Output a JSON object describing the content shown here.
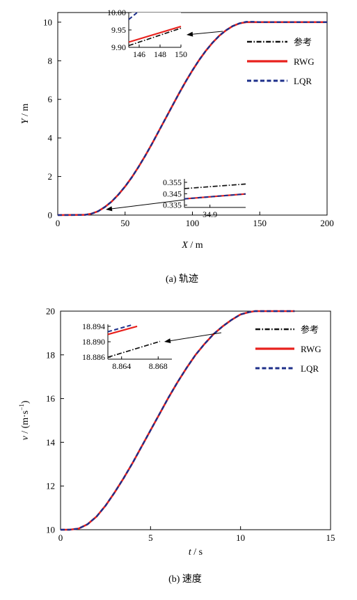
{
  "chart_data": [
    {
      "type": "line",
      "caption": "(a) 轨迹",
      "xlabel_var": "X",
      "xlabel_unit": " / m",
      "ylabel_var": "Y",
      "ylabel_unit": " / m",
      "xlim": [
        0,
        200
      ],
      "ylim": [
        0,
        10.5
      ],
      "xticks": [
        "0",
        "50",
        "100",
        "150",
        "200"
      ],
      "yticks": [
        "0",
        "2",
        "4",
        "6",
        "8",
        "10"
      ],
      "legend": [
        "参考",
        "RWG",
        "LQR"
      ],
      "legend_position": "top-right",
      "series": [
        {
          "name": "参考",
          "color": "#111111",
          "style": "dash-dot",
          "x": [
            0,
            20,
            25,
            30,
            35,
            40,
            45,
            50,
            55,
            60,
            65,
            70,
            75,
            80,
            85,
            90,
            95,
            100,
            105,
            110,
            115,
            120,
            125,
            130,
            135,
            140,
            145,
            150,
            160,
            170,
            180,
            190,
            200
          ],
          "y": [
            0,
            0.01,
            0.07,
            0.2,
            0.42,
            0.7,
            1.06,
            1.48,
            1.96,
            2.5,
            3.08,
            3.7,
            4.35,
            5.0,
            5.65,
            6.3,
            6.92,
            7.5,
            8.04,
            8.52,
            8.94,
            9.3,
            9.58,
            9.8,
            9.94,
            10.0,
            10.0,
            10.0,
            10.0,
            10.0,
            10.0,
            10.0,
            10.0
          ]
        },
        {
          "name": "RWG",
          "color": "#e8211d",
          "style": "solid",
          "x": [
            0,
            20,
            25,
            30,
            35,
            40,
            45,
            50,
            55,
            60,
            65,
            70,
            75,
            80,
            85,
            90,
            95,
            100,
            105,
            110,
            115,
            120,
            125,
            130,
            135,
            140,
            145,
            150,
            160,
            170,
            180,
            190,
            200
          ],
          "y": [
            0,
            0.01,
            0.07,
            0.2,
            0.42,
            0.7,
            1.06,
            1.48,
            1.96,
            2.5,
            3.08,
            3.7,
            4.35,
            5.0,
            5.65,
            6.3,
            6.92,
            7.5,
            8.04,
            8.52,
            8.94,
            9.3,
            9.58,
            9.8,
            9.94,
            10.0,
            10.0,
            10.0,
            10.0,
            10.0,
            10.0,
            10.0,
            10.0
          ]
        },
        {
          "name": "LQR",
          "color": "#1d2f8a",
          "style": "dashed",
          "x": [
            0,
            20,
            25,
            30,
            35,
            40,
            45,
            50,
            55,
            60,
            65,
            70,
            75,
            80,
            85,
            90,
            95,
            100,
            105,
            110,
            115,
            120,
            125,
            130,
            135,
            140,
            145,
            150,
            160,
            170,
            180,
            190,
            200
          ],
          "y": [
            0,
            0.01,
            0.07,
            0.2,
            0.42,
            0.7,
            1.06,
            1.48,
            1.96,
            2.5,
            3.08,
            3.7,
            4.35,
            5.0,
            5.65,
            6.3,
            6.92,
            7.5,
            8.04,
            8.52,
            8.94,
            9.3,
            9.58,
            9.8,
            9.94,
            10.02,
            10.02,
            10.0,
            10.0,
            10.0,
            10.0,
            10.0,
            10.0
          ]
        }
      ],
      "insets": [
        {
          "xlim": [
            145,
            150
          ],
          "ylim": [
            9.9,
            10.0
          ],
          "xticks": [
            146,
            148,
            150
          ],
          "xtick_labels": [
            "146",
            "148",
            "150"
          ],
          "yticks": [
            9.9,
            9.95,
            10.0
          ],
          "ytick_labels": [
            "9.90",
            "9.95",
            "10.00"
          ],
          "target": [
            142,
            9.96
          ],
          "series": [
            {
              "name": "参考",
              "x": [
                145,
                150
              ],
              "y": [
                9.905,
                9.955
              ]
            },
            {
              "name": "RWG",
              "x": [
                145,
                150
              ],
              "y": [
                9.915,
                9.96
              ]
            },
            {
              "name": "LQR",
              "x": [
                145,
                145.8
              ],
              "y": [
                9.98,
                10.0
              ]
            }
          ]
        },
        {
          "xlim": [
            34.8,
            35.04
          ],
          "ylim": [
            0.333,
            0.358
          ],
          "xticks": [
            34.9
          ],
          "xtick_labels": [
            "34.9"
          ],
          "yticks": [
            0.335,
            0.345,
            0.355
          ],
          "ytick_labels": [
            "0.335",
            "0.345",
            "0.355"
          ],
          "target": [
            34.9,
            0.32
          ],
          "series": [
            {
              "name": "参考",
              "x": [
                34.8,
                35.04
              ],
              "y": [
                0.3495,
                0.3535
              ]
            },
            {
              "name": "RWG",
              "x": [
                34.8,
                35.04
              ],
              "y": [
                0.3405,
                0.3448
              ]
            },
            {
              "name": "LQR",
              "x": [
                34.8,
                35.04
              ],
              "y": [
                0.3405,
                0.3448
              ]
            }
          ]
        }
      ]
    },
    {
      "type": "line",
      "caption": "(b) 速度",
      "xlabel_var": "t",
      "xlabel_unit": " / s",
      "ylabel_var": "v",
      "ylabel_unit": " / (m·s",
      "ylabel_exp": "−1",
      "ylabel_end": ")",
      "xlim": [
        0,
        15
      ],
      "ylim": [
        10,
        20
      ],
      "xticks": [
        "0",
        "5",
        "10",
        "15"
      ],
      "yticks": [
        "10",
        "12",
        "14",
        "16",
        "18",
        "20"
      ],
      "legend": [
        "参考",
        "RWG",
        "LQR"
      ],
      "legend_position": "top-right",
      "series": [
        {
          "name": "参考",
          "color": "#111111",
          "style": "dash-dot",
          "x": [
            0,
            0.5,
            1,
            1.5,
            2,
            2.5,
            3,
            3.5,
            4,
            4.5,
            5,
            5.5,
            6,
            6.5,
            7,
            7.5,
            8,
            8.5,
            9,
            9.5,
            10,
            10.5,
            10.8,
            11,
            12,
            13
          ],
          "y": [
            10.0,
            10.0,
            10.05,
            10.25,
            10.6,
            11.1,
            11.7,
            12.35,
            13.05,
            13.8,
            14.55,
            15.3,
            16.05,
            16.75,
            17.4,
            18.0,
            18.5,
            18.95,
            19.3,
            19.6,
            19.85,
            19.96,
            20.0,
            20.0,
            20.0,
            20.0
          ]
        },
        {
          "name": "RWG",
          "color": "#e8211d",
          "style": "solid",
          "x": [
            0,
            0.5,
            1,
            1.5,
            2,
            2.5,
            3,
            3.5,
            4,
            4.5,
            5,
            5.5,
            6,
            6.5,
            7,
            7.5,
            8,
            8.5,
            9,
            9.5,
            10,
            10.5,
            10.8,
            11,
            12,
            13
          ],
          "y": [
            10.0,
            10.0,
            10.05,
            10.25,
            10.6,
            11.1,
            11.7,
            12.35,
            13.05,
            13.8,
            14.55,
            15.3,
            16.05,
            16.75,
            17.4,
            18.0,
            18.5,
            18.95,
            19.3,
            19.6,
            19.85,
            19.96,
            20.0,
            20.0,
            20.0,
            20.0
          ]
        },
        {
          "name": "LQR",
          "color": "#1d2f8a",
          "style": "dashed",
          "x": [
            0,
            0.5,
            1,
            1.5,
            2,
            2.5,
            3,
            3.5,
            4,
            4.5,
            5,
            5.5,
            6,
            6.5,
            7,
            7.5,
            8,
            8.5,
            9,
            9.5,
            10,
            10.5,
            10.8,
            11,
            12,
            13
          ],
          "y": [
            10.0,
            10.0,
            10.05,
            10.25,
            10.6,
            11.1,
            11.7,
            12.35,
            13.05,
            13.8,
            14.55,
            15.3,
            16.05,
            16.75,
            17.4,
            18.0,
            18.5,
            18.95,
            19.3,
            19.6,
            19.85,
            19.96,
            20.0,
            20.0,
            20.0,
            20.0
          ]
        }
      ],
      "insets": [
        {
          "xlim": [
            8.8625,
            8.8695
          ],
          "ylim": [
            18.8855,
            18.8945
          ],
          "xticks": [
            8.864,
            8.868
          ],
          "xtick_labels": [
            "8.864",
            "8.868"
          ],
          "yticks": [
            18.886,
            18.89,
            18.894
          ],
          "ytick_labels": [
            "18.886",
            "18.890",
            "18.894"
          ],
          "target": [
            8.7,
            18.8
          ],
          "series": [
            {
              "name": "参考",
              "x": [
                8.8625,
                8.8682
              ],
              "y": [
                18.886,
                18.8901
              ]
            },
            {
              "name": "RWG",
              "x": [
                8.8625,
                8.8657
              ],
              "y": [
                18.8919,
                18.894
              ]
            },
            {
              "name": "LQR",
              "x": [
                8.8625,
                8.8652
              ],
              "y": [
                18.8926,
                18.8944
              ]
            }
          ]
        }
      ]
    }
  ]
}
